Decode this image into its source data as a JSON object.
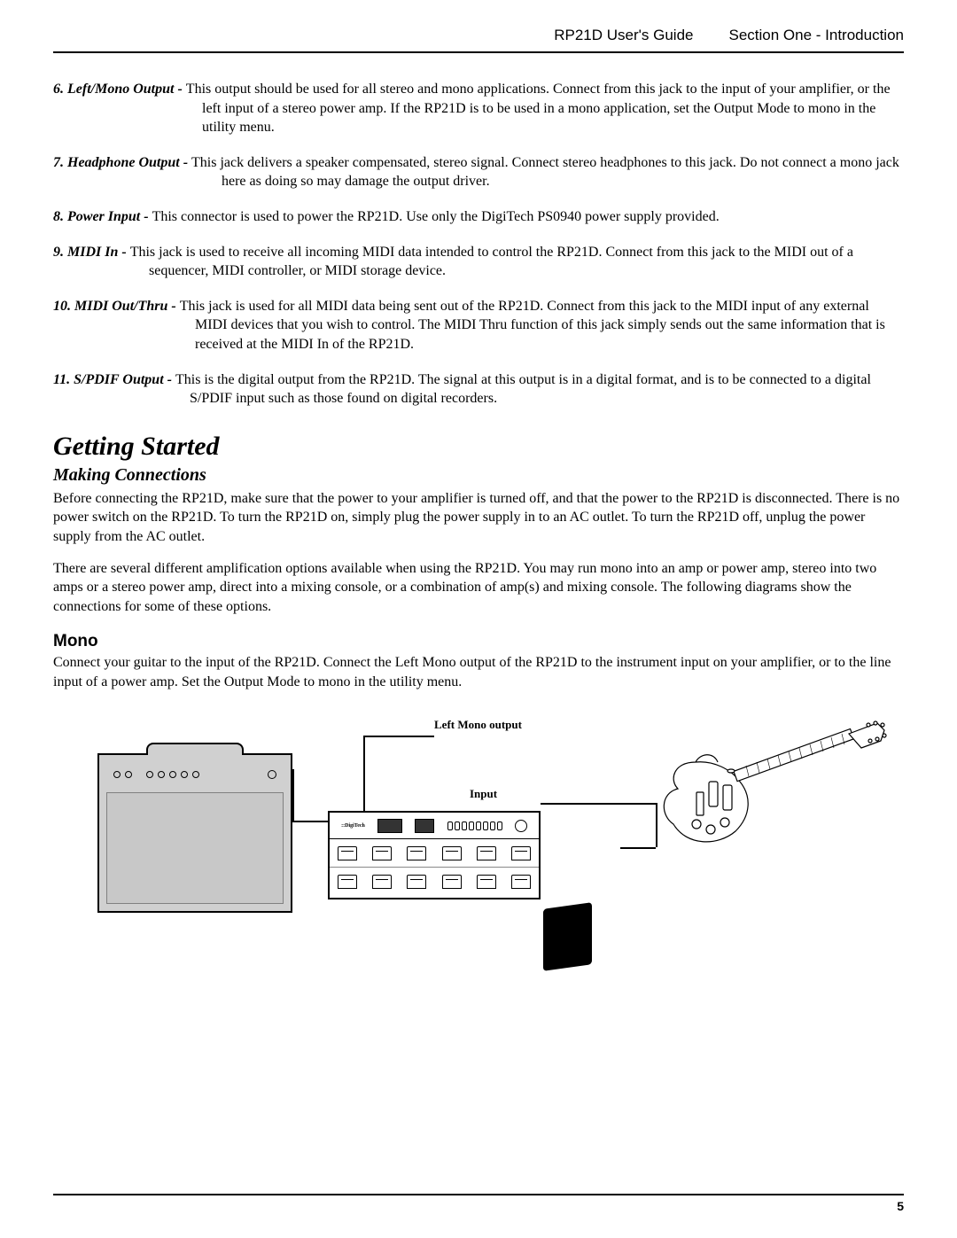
{
  "header": {
    "guide_title": "RP21D User's Guide",
    "section": "Section One - Introduction"
  },
  "items": [
    {
      "num": "6.",
      "label": "Left/Mono Output -",
      "desc": "This output should be used for all stereo and mono applications. Connect from this jack to the input of your amplifier, or the left input of a stereo power amp. If the RP21D is to be used in a mono application, set the Output Mode to mono in the utility menu.",
      "hang": "hang"
    },
    {
      "num": "7.",
      "label": "Headphone Output -",
      "desc": "This jack delivers a speaker compensated, stereo signal. Connect stereo headphones to this jack. Do not connect a mono jack here as doing so may damage the output driver.",
      "hang": "hang7"
    },
    {
      "num": "8.",
      "label": "Power Input -",
      "desc": "This connector is used to power the RP21D. Use only the DigiTech PS0940 power supply provided.",
      "hang": "hang8"
    },
    {
      "num": "9.",
      "label": "MIDI In -",
      "desc": "This jack is used to receive all incoming MIDI data intended to control the RP21D. Connect from this jack to the MIDI out of a sequencer, MIDI controller, or MIDI storage device.",
      "hang": "hang9"
    },
    {
      "num": "10.",
      "label": "MIDI Out/Thru -",
      "desc": "This jack is used for all MIDI data being sent out of the RP21D. Connect from this jack to the MIDI input of any external MIDI devices that you wish to control. The MIDI Thru function of this jack simply sends out the same information that is received at the MIDI In of the RP21D.",
      "hang": "hang10"
    },
    {
      "num": "11.",
      "label": "S/PDIF Output -",
      "desc": "This is the digital output from the RP21D. The signal at this output is in a digital format, and is to be connected to a digital S/PDIF input such as those found on digital recorders.",
      "hang": "hang11"
    }
  ],
  "getting_started": {
    "title": "Getting Started",
    "sub": "Making Connections",
    "p1": "Before connecting the RP21D, make sure that the power to your amplifier is turned off, and that the power to the RP21D is disconnected. There is no power switch on the RP21D. To turn the RP21D on, simply plug the power supply in to an AC outlet. To turn the RP21D off, unplug the power supply from the AC outlet.",
    "p2": "There are several different amplification options available when using the RP21D. You may run mono into an amp or power amp, stereo into two amps or a stereo power amp, direct into a mixing console, or a combination of amp(s) and mixing console. The following diagrams show the connections for some of these options.",
    "mono_head": "Mono",
    "mono_p": "Connect your guitar to the input of the RP21D. Connect the Left Mono output of the RP21D to the instrument input on your amplifier, or to the line input of a power amp.  Set the Output Mode to mono in the utility menu."
  },
  "diagram": {
    "label_left": "Left Mono output",
    "label_input": "Input"
  },
  "page_number": "5"
}
